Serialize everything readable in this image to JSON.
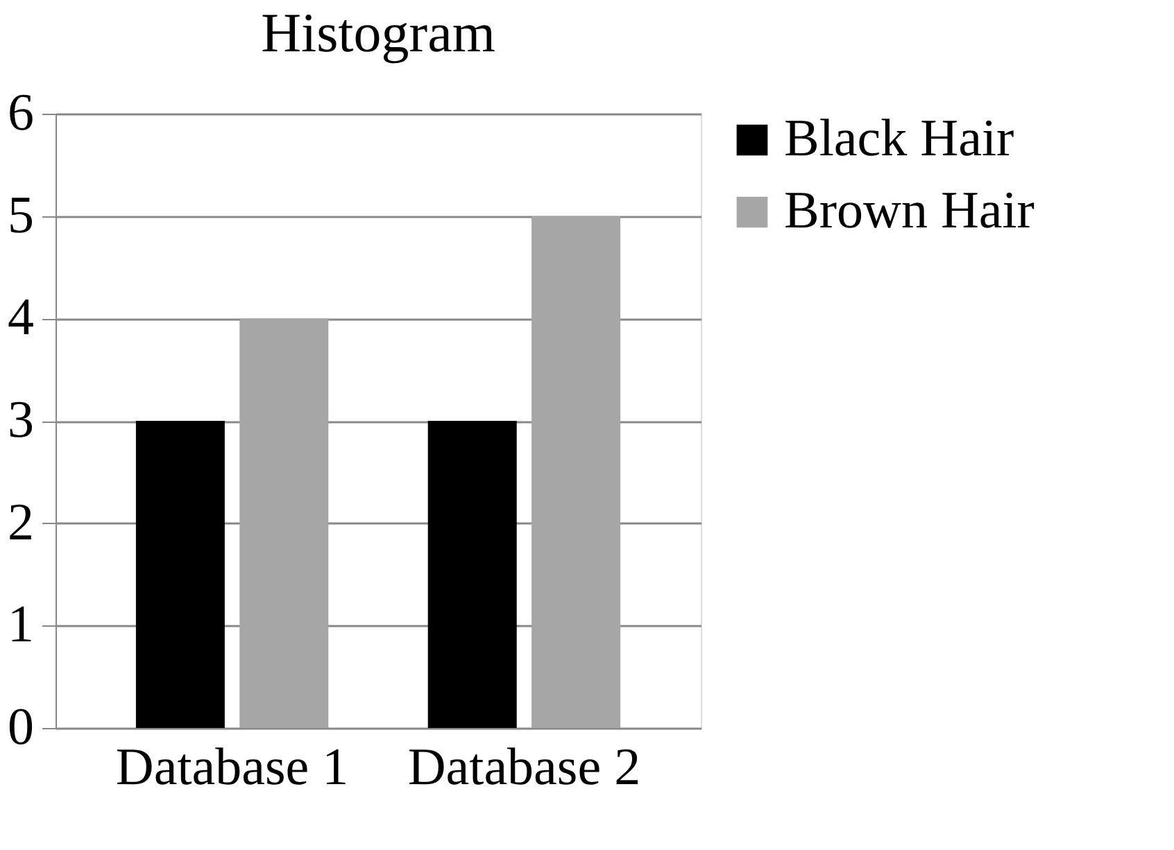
{
  "chart_data": {
    "type": "bar",
    "title": "Histogram",
    "categories": [
      "Database 1",
      "Database 2"
    ],
    "series": [
      {
        "name": "Black Hair",
        "color": "#000000",
        "values": [
          3,
          3
        ]
      },
      {
        "name": "Brown Hair",
        "color": "#a6a6a6",
        "values": [
          4,
          5
        ]
      }
    ],
    "ylim": [
      0,
      6
    ],
    "yticks": [
      0,
      1,
      2,
      3,
      4,
      5,
      6
    ],
    "grid": "y",
    "legend": "right"
  }
}
